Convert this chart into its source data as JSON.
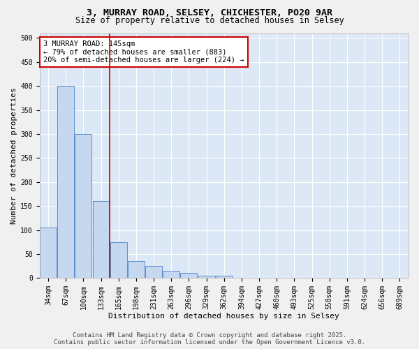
{
  "title_line1": "3, MURRAY ROAD, SELSEY, CHICHESTER, PO20 9AR",
  "title_line2": "Size of property relative to detached houses in Selsey",
  "xlabel": "Distribution of detached houses by size in Selsey",
  "ylabel": "Number of detached properties",
  "categories": [
    "34sqm",
    "67sqm",
    "100sqm",
    "133sqm",
    "165sqm",
    "198sqm",
    "231sqm",
    "263sqm",
    "296sqm",
    "329sqm",
    "362sqm",
    "394sqm",
    "427sqm",
    "460sqm",
    "493sqm",
    "525sqm",
    "558sqm",
    "591sqm",
    "624sqm",
    "656sqm",
    "689sqm"
  ],
  "values": [
    105,
    400,
    300,
    160,
    75,
    35,
    25,
    15,
    10,
    5,
    5,
    0,
    0,
    0,
    0,
    0,
    0,
    0,
    0,
    0,
    0
  ],
  "bar_color": "#c5d8f0",
  "bar_edge_color": "#5b8fc9",
  "vline_x": 3.5,
  "vline_color": "#cc0000",
  "annotation_text": "3 MURRAY ROAD: 145sqm\n← 79% of detached houses are smaller (883)\n20% of semi-detached houses are larger (224) →",
  "annotation_box_color": "#cc0000",
  "ylim": [
    0,
    510
  ],
  "yticks": [
    0,
    50,
    100,
    150,
    200,
    250,
    300,
    350,
    400,
    450,
    500
  ],
  "footer_line1": "Contains HM Land Registry data © Crown copyright and database right 2025.",
  "footer_line2": "Contains public sector information licensed under the Open Government Licence v3.0.",
  "plot_bg_color": "#dce8f5",
  "fig_bg_color": "#f0f0f0",
  "grid_color": "#ffffff",
  "title_fontsize": 9.5,
  "subtitle_fontsize": 8.5,
  "axis_label_fontsize": 8,
  "tick_fontsize": 7,
  "annotation_fontsize": 7.5,
  "footer_fontsize": 6.5
}
